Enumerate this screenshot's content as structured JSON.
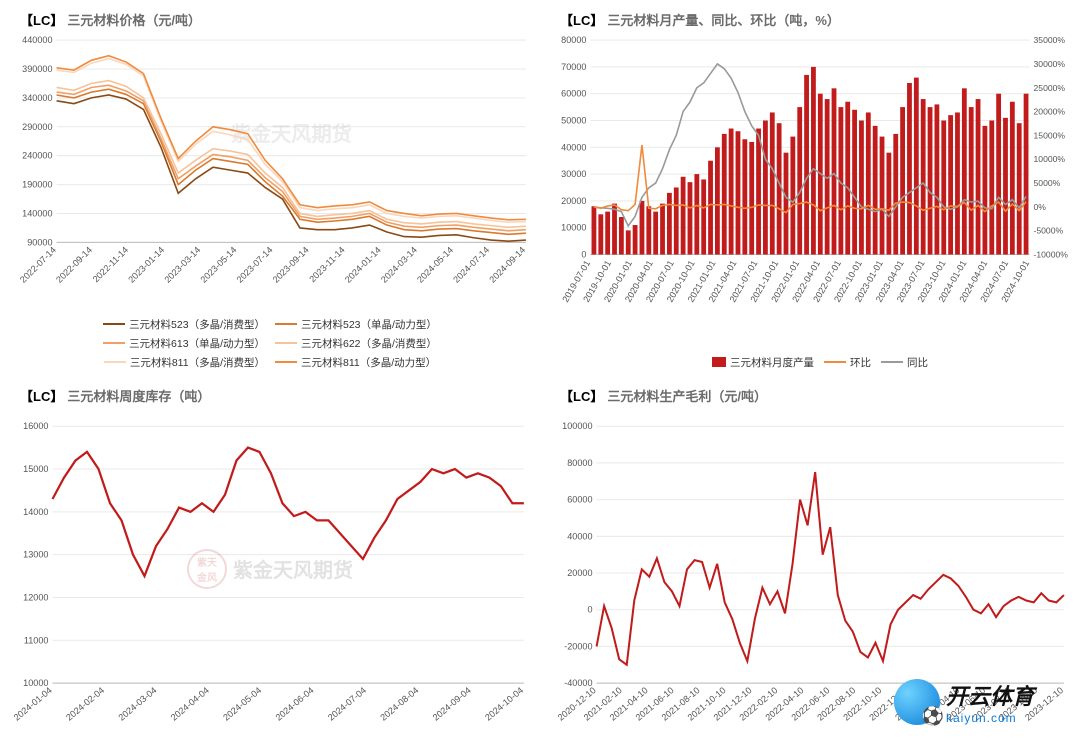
{
  "watermark_text": "紫金天风期货",
  "logo": {
    "cn": "开云体育",
    "en": "kaiyun.com"
  },
  "panels": {
    "p1": {
      "badge": "【LC】",
      "title": "三元材料价格（元/吨）",
      "type": "line",
      "x_labels": [
        "2022-07-14",
        "2022-09-14",
        "2022-11-14",
        "2023-01-14",
        "2023-03-14",
        "2023-05-14",
        "2023-07-14",
        "2023-09-14",
        "2023-11-14",
        "2024-01-14",
        "2024-03-14",
        "2024-05-14",
        "2024-07-14",
        "2024-09-14"
      ],
      "ylim": [
        90000,
        440000
      ],
      "ytick_step": 50000,
      "grid_color": "#e9e9e9",
      "axis_color": "#bbbbbb",
      "bg": "#ffffff",
      "label_fontsize": 9,
      "series": [
        {
          "name": "三元材料523（多晶/消费型）",
          "color": "#8a4a14",
          "y": [
            335000,
            330000,
            340000,
            345000,
            338000,
            320000,
            255000,
            175000,
            200000,
            220000,
            215000,
            210000,
            185000,
            165000,
            115000,
            112000,
            112000,
            115000,
            120000,
            108000,
            100000,
            99000,
            102000,
            103000,
            98000,
            94000,
            92000,
            94000
          ]
        },
        {
          "name": "三元材料523（单晶/动力型）",
          "color": "#d97a2e",
          "y": [
            345000,
            340000,
            350000,
            355000,
            346000,
            330000,
            265000,
            190000,
            215000,
            235000,
            230000,
            225000,
            195000,
            170000,
            130000,
            125000,
            127000,
            130000,
            135000,
            120000,
            112000,
            110000,
            113000,
            114000,
            110000,
            107000,
            104000,
            106000
          ]
        },
        {
          "name": "三元材料613（单晶/动力型）",
          "color": "#f0a066",
          "y": [
            350000,
            346000,
            358000,
            362000,
            352000,
            335000,
            270000,
            200000,
            222000,
            242000,
            238000,
            232000,
            202000,
            178000,
            135000,
            130000,
            132000,
            135000,
            140000,
            125000,
            118000,
            116000,
            119000,
            120000,
            116000,
            113000,
            110000,
            112000
          ]
        },
        {
          "name": "三元材料622（多晶/消费型）",
          "color": "#f6c39a",
          "y": [
            358000,
            353000,
            365000,
            370000,
            360000,
            340000,
            278000,
            210000,
            232000,
            252000,
            248000,
            242000,
            210000,
            185000,
            140000,
            135000,
            138000,
            140000,
            145000,
            130000,
            124000,
            122000,
            125000,
            126000,
            122000,
            119000,
            116000,
            118000
          ]
        },
        {
          "name": "三元材料811（多晶/消费型）",
          "color": "#f9d7bd",
          "y": [
            388000,
            384000,
            400000,
            408000,
            398000,
            378000,
            300000,
            230000,
            260000,
            282000,
            276000,
            268000,
            225000,
            195000,
            150000,
            145000,
            148000,
            150000,
            155000,
            140000,
            135000,
            132000,
            135000,
            136000,
            132000,
            128000,
            125000,
            126000
          ]
        },
        {
          "name": "三元材料811（多晶/动力型）",
          "color": "#f08a3c",
          "y": [
            392000,
            388000,
            405000,
            413000,
            402000,
            382000,
            305000,
            235000,
            265000,
            290000,
            285000,
            278000,
            232000,
            200000,
            155000,
            150000,
            153000,
            155000,
            160000,
            145000,
            140000,
            136000,
            139000,
            140000,
            136000,
            132000,
            129000,
            130000
          ]
        }
      ]
    },
    "p2": {
      "badge": "【LC】",
      "title": "三元材料月产量、同比、环比（吨，%）",
      "type": "bar_line",
      "x_labels": [
        "2019-07-01",
        "2019-10-01",
        "2020-01-01",
        "2020-04-01",
        "2020-07-01",
        "2020-10-01",
        "2021-01-01",
        "2021-04-01",
        "2021-07-01",
        "2021-10-01",
        "2022-01-01",
        "2022-04-01",
        "2022-07-01",
        "2022-10-01",
        "2023-01-01",
        "2023-04-01",
        "2023-07-01",
        "2023-10-01",
        "2024-01-01",
        "2024-04-01",
        "2024-07-01",
        "2024-10-01"
      ],
      "ylim_left": [
        0,
        80000
      ],
      "ytick_left": 10000,
      "ylim_right": [
        -10000,
        35000
      ],
      "ytick_right": 5000,
      "bar_color": "#c11b1b",
      "line_mom_color": "#f08a3c",
      "line_yoy_color": "#9a9a9a",
      "legend": {
        "bar": "三元材料月度产量",
        "mom": "环比",
        "yoy": "同比"
      },
      "bars": [
        18000,
        15000,
        16000,
        19000,
        14000,
        9000,
        11000,
        20000,
        18000,
        16000,
        19000,
        23000,
        25000,
        29000,
        27000,
        30000,
        28000,
        35000,
        40000,
        45000,
        47000,
        46000,
        43000,
        42000,
        47000,
        50000,
        53000,
        49000,
        38000,
        44000,
        55000,
        67000,
        70000,
        60000,
        58000,
        62000,
        55000,
        57000,
        54000,
        50000,
        53000,
        48000,
        44000,
        38000,
        45000,
        55000,
        64000,
        66000,
        58000,
        55000,
        56000,
        50000,
        52000,
        53000,
        62000,
        55000,
        58000,
        48000,
        50000,
        60000,
        51000,
        57000,
        49000,
        60000
      ],
      "mom": [
        0,
        -300,
        200,
        400,
        -600,
        -800,
        500,
        13000,
        -300,
        -400,
        300,
        500,
        300,
        400,
        -200,
        300,
        -200,
        500,
        400,
        500,
        200,
        -100,
        -300,
        -100,
        400,
        300,
        300,
        -400,
        -1200,
        500,
        700,
        1000,
        400,
        -800,
        -200,
        300,
        -600,
        200,
        -300,
        -400,
        300,
        -500,
        -400,
        -700,
        800,
        1000,
        900,
        200,
        -700,
        -300,
        100,
        -600,
        200,
        100,
        900,
        -700,
        300,
        -1000,
        200,
        1000,
        -900,
        600,
        -800,
        1100
      ],
      "yoy": [
        0,
        -200,
        -300,
        -500,
        -1000,
        -4000,
        -2000,
        2000,
        4000,
        5000,
        8000,
        12000,
        15000,
        20000,
        22000,
        25000,
        26000,
        28000,
        30000,
        29000,
        27000,
        24000,
        20000,
        17000,
        15000,
        10000,
        8000,
        5000,
        2000,
        1000,
        3000,
        6000,
        8000,
        7000,
        6000,
        7000,
        5000,
        4000,
        2000,
        0,
        -500,
        -1000,
        -500,
        -2000,
        0,
        2000,
        3000,
        4000,
        5000,
        3000,
        2000,
        0,
        -500,
        0,
        1500,
        1000,
        1200,
        -200,
        -400,
        2000,
        500,
        1500,
        -200,
        2200
      ]
    },
    "p3": {
      "badge": "【LC】",
      "title": "三元材料周度库存（吨）",
      "type": "line",
      "x_labels": [
        "2024-01-04",
        "2024-02-04",
        "2024-03-04",
        "2024-04-04",
        "2024-05-04",
        "2024-06-04",
        "2024-07-04",
        "2024-08-04",
        "2024-09-04",
        "2024-10-04"
      ],
      "ylim": [
        10000,
        16000
      ],
      "ytick_step": 1000,
      "line_color": "#c11b1b",
      "y": [
        14300,
        14800,
        15200,
        15400,
        15000,
        14200,
        13800,
        13000,
        12500,
        13200,
        13600,
        14100,
        14000,
        14200,
        14000,
        14400,
        15200,
        15500,
        15400,
        14900,
        14200,
        13900,
        14000,
        13800,
        13800,
        13500,
        13200,
        12900,
        13400,
        13800,
        14300,
        14500,
        14700,
        15000,
        14900,
        15000,
        14800,
        14900,
        14800,
        14600,
        14200,
        14200
      ]
    },
    "p4": {
      "badge": "【LC】",
      "title": "三元材料生产毛利（元/吨）",
      "type": "line",
      "x_labels": [
        "2020-12-10",
        "2021-02-10",
        "2021-04-10",
        "2021-06-10",
        "2021-08-10",
        "2021-10-10",
        "2021-12-10",
        "2022-02-10",
        "2022-04-10",
        "2022-06-10",
        "2022-08-10",
        "2022-10-10",
        "2022-12-10",
        "2023-02-10",
        "2023-04-10",
        "2023-06-10",
        "2023-08-10",
        "2023-10-10",
        "2023-12-10"
      ],
      "ylim": [
        -40000,
        100000
      ],
      "ytick_step": 20000,
      "line_color": "#c11b1b",
      "y": [
        -20000,
        2000,
        -10000,
        -27000,
        -30000,
        5000,
        22000,
        18000,
        28000,
        15000,
        10000,
        2000,
        22000,
        27000,
        26000,
        12000,
        25000,
        4000,
        -5000,
        -18000,
        -28000,
        -5000,
        12000,
        3000,
        10000,
        -2000,
        25000,
        60000,
        46000,
        75000,
        30000,
        45000,
        8000,
        -6000,
        -12000,
        -23000,
        -26000,
        -18000,
        -28000,
        -8000,
        0,
        4000,
        8000,
        6000,
        11000,
        15000,
        19000,
        17000,
        13000,
        7000,
        0,
        -2000,
        3000,
        -4000,
        2000,
        5000,
        7000,
        5000,
        4000,
        9000,
        5000,
        4000,
        8000
      ]
    }
  }
}
